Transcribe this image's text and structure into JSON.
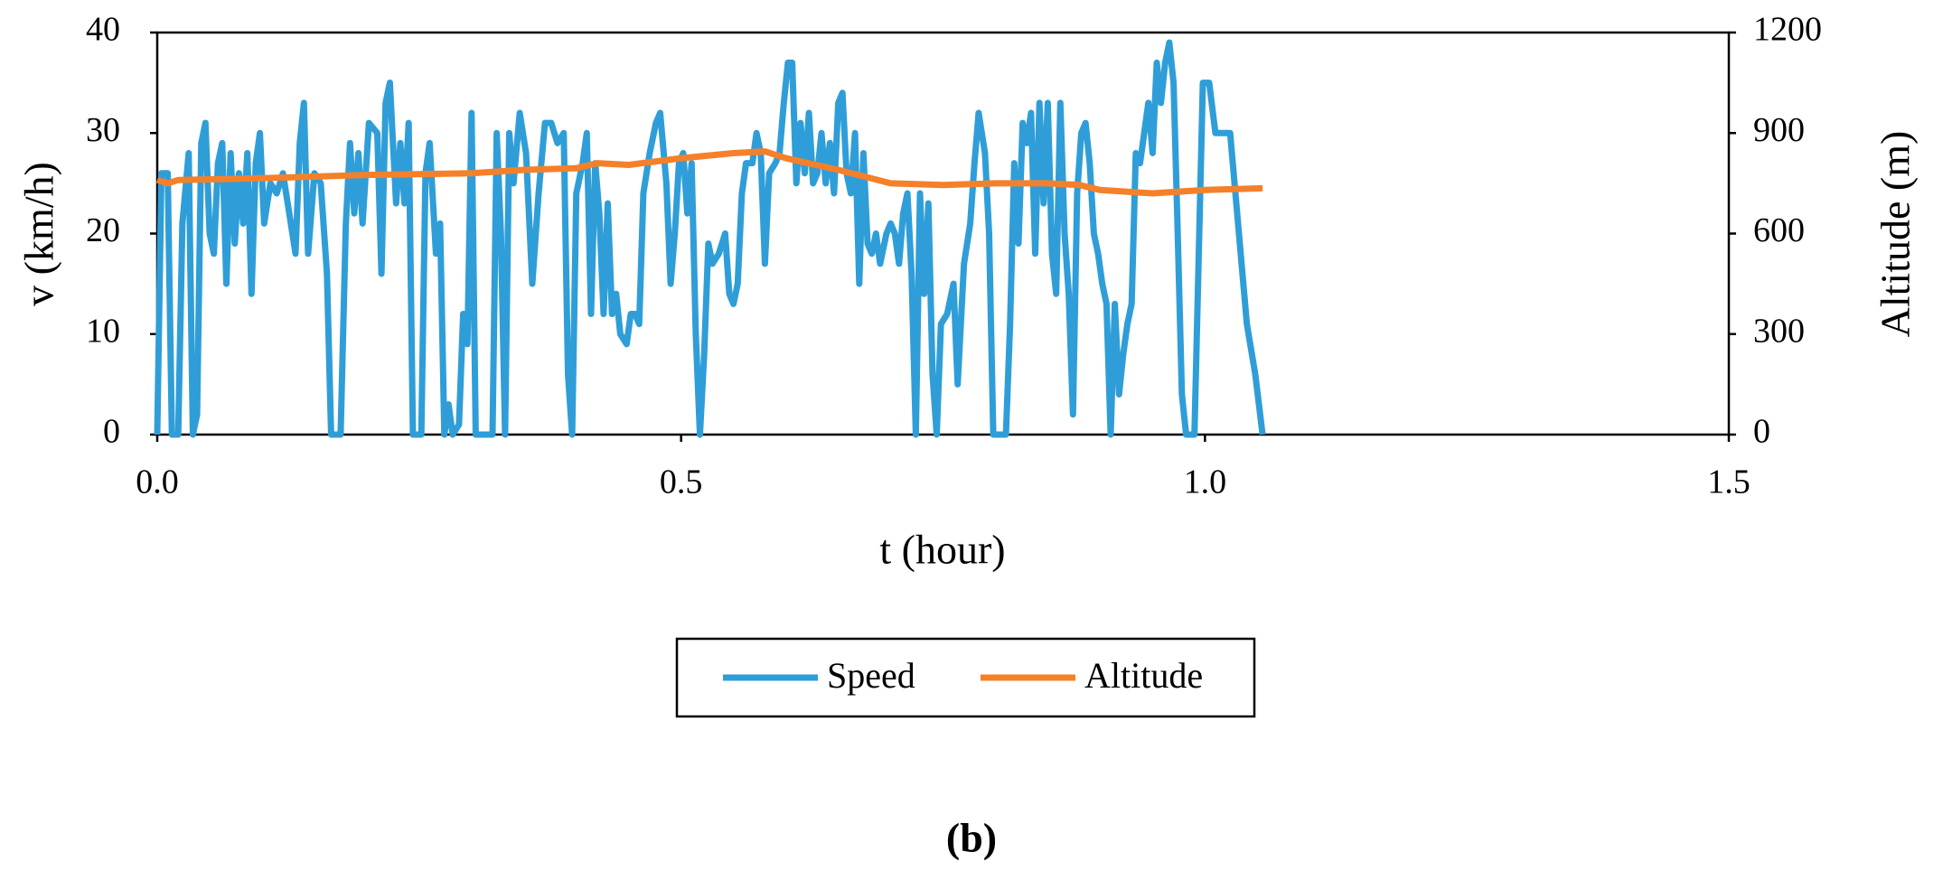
{
  "chart_data": {
    "type": "line",
    "xlabel": "t (hour)",
    "ylabel": "v (km/h)",
    "y2label": "Altitude (m)",
    "caption": "(b)",
    "xlim": [
      0,
      1.5
    ],
    "xticks": [
      {
        "value": 0,
        "label": "0.0"
      },
      0.5,
      {
        "value": 1,
        "label": "1.0"
      },
      1.5
    ],
    "ylim": [
      0,
      40
    ],
    "yticks": [
      0,
      10,
      20,
      30,
      40
    ],
    "y2lim": [
      0,
      1200
    ],
    "y2ticks": [
      0,
      300,
      600,
      900,
      1200
    ],
    "legend": "bottom",
    "grid": false,
    "series": [
      {
        "name": "Speed",
        "color": "#2f9ed8",
        "x": [
          0,
          0.004,
          0.01,
          0.014,
          0.02,
          0.024,
          0.03,
          0.034,
          0.038,
          0.042,
          0.046,
          0.05,
          0.054,
          0.058,
          0.062,
          0.066,
          0.07,
          0.074,
          0.078,
          0.082,
          0.086,
          0.09,
          0.094,
          0.098,
          0.102,
          0.108,
          0.114,
          0.12,
          0.126,
          0.132,
          0.136,
          0.14,
          0.144,
          0.15,
          0.156,
          0.162,
          0.166,
          0.175,
          0.18,
          0.184,
          0.188,
          0.192,
          0.196,
          0.202,
          0.21,
          0.214,
          0.218,
          0.222,
          0.228,
          0.232,
          0.236,
          0.24,
          0.244,
          0.252,
          0.256,
          0.26,
          0.266,
          0.27,
          0.274,
          0.278,
          0.282,
          0.288,
          0.292,
          0.296,
          0.3,
          0.304,
          0.32,
          0.324,
          0.328,
          0.332,
          0.336,
          0.34,
          0.346,
          0.352,
          0.358,
          0.364,
          0.37,
          0.376,
          0.382,
          0.388,
          0.392,
          0.396,
          0.4,
          0.406,
          0.41,
          0.414,
          0.418,
          0.422,
          0.426,
          0.43,
          0.434,
          0.438,
          0.442,
          0.448,
          0.452,
          0.456,
          0.46,
          0.464,
          0.47,
          0.476,
          0.48,
          0.486,
          0.49,
          0.494,
          0.498,
          0.502,
          0.506,
          0.51,
          0.514,
          0.518,
          0.522,
          0.526,
          0.53,
          0.536,
          0.542,
          0.546,
          0.55,
          0.554,
          0.558,
          0.562,
          0.568,
          0.572,
          0.576,
          0.58,
          0.584,
          0.59,
          0.594,
          0.598,
          0.602,
          0.606,
          0.61,
          0.614,
          0.618,
          0.622,
          0.626,
          0.63,
          0.634,
          0.638,
          0.642,
          0.646,
          0.65,
          0.654,
          0.658,
          0.662,
          0.666,
          0.67,
          0.674,
          0.678,
          0.682,
          0.686,
          0.69,
          0.696,
          0.7,
          0.704,
          0.708,
          0.712,
          0.716,
          0.72,
          0.724,
          0.728,
          0.732,
          0.736,
          0.74,
          0.744,
          0.748,
          0.754,
          0.76,
          0.764,
          0.77,
          0.776,
          0.78,
          0.784,
          0.79,
          0.794,
          0.798,
          0.81,
          0.814,
          0.818,
          0.822,
          0.826,
          0.83,
          0.834,
          0.838,
          0.842,
          0.846,
          0.85,
          0.854,
          0.858,
          0.862,
          0.866,
          0.87,
          0.874,
          0.878,
          0.882,
          0.886,
          0.89,
          0.894,
          0.898,
          0.902,
          0.906,
          0.91,
          0.914,
          0.918,
          0.922,
          0.926,
          0.93,
          0.934,
          0.938,
          0.942,
          0.946,
          0.95,
          0.954,
          0.958,
          0.962,
          0.966,
          0.97,
          0.974,
          0.978,
          0.982,
          0.99,
          0.998,
          1.004,
          1.01,
          1.024,
          1.04,
          1.048,
          1.055
        ],
        "values": [
          0,
          26,
          26,
          0,
          0,
          21,
          28,
          0,
          2,
          29,
          31,
          20,
          18,
          27,
          29,
          15,
          28,
          19,
          26,
          21,
          28,
          14,
          27,
          30,
          21,
          25,
          24,
          26,
          22,
          18,
          29,
          33,
          18,
          26,
          25,
          16,
          0,
          0,
          21,
          29,
          22,
          28,
          21,
          31,
          30,
          16,
          33,
          35,
          23,
          29,
          23,
          31,
          0,
          0,
          26,
          29,
          18,
          21,
          0,
          3,
          0,
          1,
          12,
          9,
          32,
          0,
          0,
          30,
          20,
          0,
          30,
          25,
          32,
          28,
          15,
          24,
          31,
          31,
          29,
          30,
          6,
          0,
          24,
          27,
          30,
          12,
          27,
          22,
          12,
          23,
          12,
          14,
          10,
          9,
          12,
          12,
          11,
          24,
          28,
          31,
          32,
          25,
          15,
          20,
          27,
          28,
          22,
          27,
          10,
          0,
          8,
          19,
          17,
          18,
          20,
          14,
          13,
          15,
          24,
          27,
          27,
          30,
          28,
          17,
          26,
          27,
          28,
          33,
          37,
          37,
          25,
          31,
          26,
          32,
          25,
          26,
          30,
          25,
          29,
          24,
          33,
          34,
          26,
          24,
          30,
          15,
          28,
          19,
          18,
          20,
          17,
          20,
          21,
          20,
          17,
          22,
          24,
          16,
          0,
          24,
          14,
          23,
          6,
          0,
          11,
          12,
          15,
          5,
          17,
          21,
          27,
          32,
          28,
          20,
          0,
          0,
          11,
          27,
          19,
          31,
          29,
          32,
          18,
          33,
          23,
          33,
          18,
          14,
          33,
          20,
          14,
          2,
          24,
          30,
          31,
          27,
          20,
          18,
          15,
          13,
          0,
          13,
          4,
          8,
          11,
          13,
          28,
          27,
          30,
          33,
          28,
          37,
          33,
          37,
          39,
          35,
          20,
          4,
          0,
          0,
          35,
          35,
          30,
          30,
          11,
          6,
          0
        ]
      },
      {
        "name": "Altitude",
        "color": "#f5802a",
        "axis": "y2",
        "x": [
          0,
          0.01,
          0.02,
          0.1,
          0.2,
          0.3,
          0.35,
          0.4,
          0.42,
          0.45,
          0.5,
          0.55,
          0.58,
          0.6,
          0.65,
          0.7,
          0.75,
          0.8,
          0.85,
          0.88,
          0.9,
          0.95,
          1,
          1.055
        ],
        "values": [
          760,
          750,
          760,
          765,
          775,
          780,
          790,
          795,
          810,
          805,
          825,
          840,
          845,
          825,
          790,
          750,
          745,
          750,
          750,
          745,
          730,
          720,
          730,
          735
        ]
      }
    ]
  }
}
